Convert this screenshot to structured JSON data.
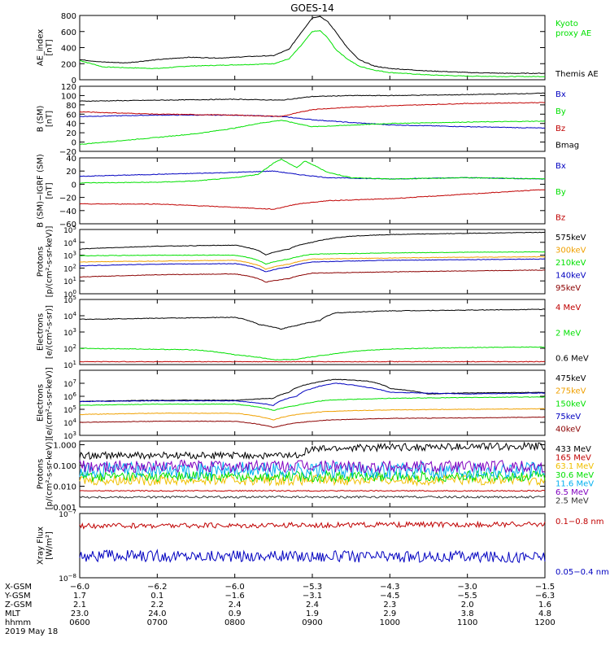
{
  "title": "GOES-14",
  "time_axis": {
    "range_hours": [
      6,
      12
    ],
    "tick_hours": [
      6,
      7,
      8,
      9,
      10,
      11,
      12
    ]
  },
  "chart_data": [
    {
      "type": "line",
      "id": "ae",
      "ylabel": "AE_index\n[nT]",
      "ylim": [
        0,
        800
      ],
      "yscale": "linear",
      "yticks": [
        0,
        200,
        400,
        600,
        800
      ],
      "series": [
        {
          "name": "Kyoto\nproxy AE",
          "color": "#00e000",
          "x": [
            6.0,
            6.3,
            6.6,
            7.0,
            7.4,
            7.8,
            8.2,
            8.5,
            8.7,
            8.85,
            9.0,
            9.1,
            9.2,
            9.3,
            9.45,
            9.6,
            9.8,
            10.0,
            10.5,
            11.0,
            11.5,
            12.0
          ],
          "y": [
            240,
            160,
            150,
            140,
            170,
            180,
            190,
            200,
            260,
            420,
            600,
            610,
            520,
            380,
            260,
            170,
            120,
            90,
            60,
            45,
            40,
            40
          ]
        },
        {
          "name": "Themis AE",
          "color": "#000000",
          "x": [
            6.0,
            6.3,
            6.6,
            7.0,
            7.4,
            7.8,
            8.2,
            8.5,
            8.7,
            8.85,
            9.0,
            9.1,
            9.2,
            9.3,
            9.45,
            9.6,
            9.8,
            10.0,
            10.5,
            11.0,
            11.5,
            12.0
          ],
          "y": [
            250,
            220,
            210,
            250,
            280,
            270,
            290,
            300,
            380,
            580,
            770,
            790,
            720,
            600,
            400,
            250,
            170,
            140,
            110,
            90,
            80,
            80
          ]
        }
      ]
    },
    {
      "type": "line",
      "id": "bsm",
      "ylabel": "B (SM)\n[nT]",
      "ylim": [
        -20,
        120
      ],
      "yscale": "linear",
      "yticks": [
        -20,
        0,
        20,
        40,
        60,
        80,
        100,
        120
      ],
      "series": [
        {
          "name": "Bx",
          "color": "#0000c0",
          "x": [
            6.0,
            7.0,
            8.0,
            8.6,
            9.0,
            9.5,
            10.0,
            11.0,
            12.0
          ],
          "y": [
            55,
            58,
            58,
            55,
            48,
            42,
            37,
            33,
            30
          ]
        },
        {
          "name": "By",
          "color": "#00e000",
          "x": [
            6.0,
            7.0,
            7.5,
            8.0,
            8.3,
            8.6,
            8.8,
            9.0,
            9.3,
            10.0,
            11.0,
            12.0
          ],
          "y": [
            -5,
            10,
            18,
            30,
            40,
            47,
            40,
            33,
            35,
            40,
            43,
            45
          ]
        },
        {
          "name": "Bz",
          "color": "#c00000",
          "x": [
            6.0,
            7.0,
            8.0,
            8.6,
            9.0,
            9.5,
            10.0,
            11.0,
            12.0
          ],
          "y": [
            65,
            60,
            58,
            55,
            70,
            75,
            78,
            83,
            85
          ]
        },
        {
          "name": "Bmag",
          "color": "#000000",
          "x": [
            6.0,
            7.0,
            8.0,
            8.6,
            9.0,
            9.5,
            10.0,
            11.0,
            12.0
          ],
          "y": [
            88,
            90,
            92,
            90,
            98,
            100,
            100,
            102,
            105
          ]
        }
      ]
    },
    {
      "type": "line",
      "id": "bigrf",
      "ylabel": "B (SM)−IGRF (SM)\n[nT]",
      "ylim": [
        -60,
        40
      ],
      "yscale": "linear",
      "yticks": [
        -60,
        -40,
        -20,
        0,
        20,
        40
      ],
      "series": [
        {
          "name": "Bx",
          "color": "#0000c0",
          "x": [
            6.0,
            7.0,
            8.0,
            8.5,
            8.8,
            9.2,
            10.0,
            11.0,
            12.0
          ],
          "y": [
            12,
            15,
            18,
            20,
            15,
            10,
            8,
            10,
            8
          ]
        },
        {
          "name": "By",
          "color": "#00e000",
          "x": [
            6.0,
            7.0,
            7.5,
            8.0,
            8.3,
            8.5,
            8.6,
            8.8,
            8.9,
            9.0,
            9.2,
            9.5,
            10.0,
            11.0,
            12.0
          ],
          "y": [
            2,
            3,
            5,
            10,
            15,
            32,
            38,
            25,
            35,
            30,
            18,
            10,
            8,
            10,
            8
          ]
        },
        {
          "name": "Bz",
          "color": "#c00000",
          "x": [
            6.0,
            7.0,
            8.0,
            8.5,
            8.8,
            9.2,
            10.0,
            11.0,
            12.0
          ],
          "y": [
            -30,
            -30,
            -35,
            -38,
            -30,
            -25,
            -22,
            -15,
            -8
          ]
        }
      ]
    },
    {
      "type": "line",
      "id": "protons",
      "ylabel": "Protons\n[p/(cm²-s-sr-keV)]",
      "ylim": [
        1,
        100000
      ],
      "yscale": "log",
      "ytick_exponents": [
        0,
        1,
        2,
        3,
        4,
        5
      ],
      "series": [
        {
          "name": "575keV",
          "color": "#000000",
          "x": [
            6.0,
            7.0,
            8.0,
            8.4,
            8.7,
            9.0,
            9.5,
            10.0,
            11.0,
            12.0
          ],
          "y": [
            3000,
            5000,
            6000,
            1000,
            3000,
            10000,
            30000,
            40000,
            50000,
            60000
          ]
        },
        {
          "name": "300keV",
          "color": "#f0a000",
          "x": [
            6.0,
            7.0,
            8.0,
            8.4,
            8.7,
            9.0,
            10.0,
            11.0,
            12.0
          ],
          "y": [
            300,
            350,
            400,
            80,
            200,
            500,
            600,
            700,
            750
          ]
        },
        {
          "name": "210keV",
          "color": "#00e000",
          "x": [
            6.0,
            7.0,
            8.0,
            8.4,
            8.7,
            9.0,
            10.0,
            11.0,
            12.0
          ],
          "y": [
            900,
            1000,
            1000,
            200,
            500,
            1200,
            1500,
            1700,
            1800
          ]
        },
        {
          "name": "140keV",
          "color": "#0000c0",
          "x": [
            6.0,
            7.0,
            8.0,
            8.4,
            8.7,
            9.0,
            10.0,
            11.0,
            12.0
          ],
          "y": [
            150,
            200,
            220,
            50,
            120,
            300,
            400,
            450,
            500
          ]
        },
        {
          "name": "95keV",
          "color": "#8b0000",
          "x": [
            6.0,
            7.0,
            8.0,
            8.4,
            8.7,
            9.0,
            10.0,
            11.0,
            12.0
          ],
          "y": [
            20,
            30,
            35,
            8,
            15,
            40,
            50,
            60,
            70
          ]
        }
      ]
    },
    {
      "type": "line",
      "id": "electrons-mev",
      "ylabel": "Electrons\n[e/(cm²-s-sr)]",
      "ylim": [
        10,
        100000
      ],
      "yscale": "log",
      "ytick_exponents": [
        1,
        2,
        3,
        4,
        5
      ],
      "series": [
        {
          "name": "4 MeV",
          "color": "#c00000",
          "x": [
            6.0,
            8.0,
            9.0,
            10.0,
            12.0
          ],
          "y": [
            15,
            15,
            15,
            15,
            15
          ]
        },
        {
          "name": "2 MeV",
          "color": "#00e000",
          "x": [
            6.0,
            7.5,
            8.0,
            8.5,
            8.8,
            9.2,
            9.6,
            10.0,
            11.0,
            12.0
          ],
          "y": [
            100,
            80,
            40,
            20,
            20,
            40,
            70,
            90,
            110,
            120
          ]
        },
        {
          "name": "0.6 MeV",
          "color": "#000000",
          "x": [
            6.0,
            7.0,
            8.0,
            8.3,
            8.6,
            8.8,
            9.1,
            9.3,
            10.0,
            11.0,
            12.0
          ],
          "y": [
            6000,
            7000,
            8000,
            3000,
            1500,
            2500,
            5000,
            15000,
            20000,
            22000,
            25000
          ]
        }
      ]
    },
    {
      "type": "line",
      "id": "electrons-kev",
      "ylabel": "Electrons\n[e/(cm²-s-sr-keV)]",
      "ylim": [
        1000,
        100000000
      ],
      "yscale": "log",
      "ytick_exponents": [
        3,
        4,
        5,
        6,
        7
      ],
      "series": [
        {
          "name": "475keV",
          "color": "#000000",
          "x": [
            6.0,
            7.0,
            8.0,
            8.5,
            8.7,
            9.0,
            9.3,
            9.7,
            10.0,
            10.5,
            11.0,
            12.0
          ],
          "y": [
            400000,
            500000,
            500000,
            700000,
            2000000,
            10000000,
            20000000,
            15000000,
            4000000,
            1500000,
            1800000,
            2000000
          ]
        },
        {
          "name": "275keV",
          "color": "#f0a000",
          "x": [
            6.0,
            7.0,
            8.0,
            8.5,
            8.8,
            9.2,
            10.0,
            11.0,
            12.0
          ],
          "y": [
            40000,
            50000,
            50000,
            15000,
            40000,
            70000,
            90000,
            100000,
            110000
          ]
        },
        {
          "name": "150keV",
          "color": "#00e000",
          "x": [
            6.0,
            7.0,
            8.0,
            8.5,
            8.8,
            9.2,
            10.0,
            11.0,
            12.0
          ],
          "y": [
            200000,
            250000,
            250000,
            80000,
            200000,
            500000,
            700000,
            800000,
            900000
          ]
        },
        {
          "name": "75keV",
          "color": "#0000c0",
          "x": [
            6.0,
            7.0,
            8.0,
            8.5,
            8.8,
            9.0,
            9.3,
            9.7,
            10.0,
            11.0,
            12.0
          ],
          "y": [
            400000,
            450000,
            450000,
            200000,
            1000000,
            4000000,
            10000000,
            5000000,
            2000000,
            1500000,
            1800000
          ]
        },
        {
          "name": "40keV",
          "color": "#8b0000",
          "x": [
            6.0,
            7.0,
            8.0,
            8.5,
            8.8,
            9.2,
            10.0,
            11.0,
            12.0
          ],
          "y": [
            10000,
            12000,
            12000,
            4000,
            9000,
            15000,
            20000,
            22000,
            25000
          ]
        }
      ]
    },
    {
      "type": "line",
      "id": "protons-mev",
      "ylabel": "Protons\n[p/(cm²-s-sr-keV)]",
      "ylim": [
        0.001,
        1.5
      ],
      "yscale": "log",
      "yticks": [
        0.001,
        0.01,
        0.1,
        1.0
      ],
      "ytick_labels": [
        "0.001",
        "0.010",
        "0.100",
        "1.000"
      ],
      "series": [
        {
          "name": "433 MeV",
          "color": "#000000",
          "x": [
            6.0,
            7.0,
            8.0,
            8.8,
            9.0,
            9.5,
            10.0,
            11.0,
            12.0
          ],
          "y": [
            0.3,
            0.3,
            0.3,
            0.3,
            0.6,
            0.7,
            0.75,
            0.8,
            0.85
          ]
        },
        {
          "name": "165 MeV",
          "color": "#c00000",
          "x": [
            6.0,
            12.0
          ],
          "y": [
            0.006,
            0.006
          ]
        },
        {
          "name": "63.1 MeV",
          "color": "#f0c000",
          "x": [
            6.0,
            12.0
          ],
          "y": [
            0.02,
            0.02
          ]
        },
        {
          "name": "30.6 MeV",
          "color": "#00e000",
          "x": [
            6.0,
            12.0
          ],
          "y": [
            0.03,
            0.03
          ]
        },
        {
          "name": "11.6 MeV",
          "color": "#00b0f0",
          "x": [
            6.0,
            12.0
          ],
          "y": [
            0.06,
            0.06
          ]
        },
        {
          "name": "6.5 MeV",
          "color": "#8000c0",
          "x": [
            6.0,
            12.0
          ],
          "y": [
            0.09,
            0.09
          ]
        },
        {
          "name": "2.5 MeV",
          "color": "#303030",
          "x": [
            6.0,
            12.0
          ],
          "y": [
            0.003,
            0.003
          ]
        }
      ]
    },
    {
      "type": "line",
      "id": "xray",
      "ylabel": "Xray Flux\n[W/m²]",
      "ylim": [
        1e-08,
        1e-07
      ],
      "yscale": "log",
      "ytick_exponents": [
        -8,
        -7
      ],
      "series": [
        {
          "name": "0.1−0.8 nm",
          "color": "#c00000",
          "x": [
            6.0,
            12.0
          ],
          "y": [
            6.4e-08,
            6.8e-08
          ]
        },
        {
          "name": "0.05−0.4 nm",
          "color": "#0000c0",
          "x": [
            6.0,
            12.0
          ],
          "y": [
            2.2e-08,
            2.1e-08
          ]
        }
      ]
    }
  ],
  "ephemeris": {
    "rows": [
      {
        "label": "X-GSM",
        "values": [
          "−6.0",
          "−6.2",
          "−6.0",
          "−5.3",
          "−4.3",
          "−3.0",
          "−1.5"
        ]
      },
      {
        "label": "Y-GSM",
        "values": [
          "1.7",
          "0.1",
          "−1.6",
          "−3.1",
          "−4.5",
          "−5.5",
          "−6.3"
        ]
      },
      {
        "label": "Z-GSM",
        "values": [
          "2.1",
          "2.2",
          "2.4",
          "2.4",
          "2.3",
          "2.0",
          "1.6"
        ]
      },
      {
        "label": "MLT",
        "values": [
          "23.0",
          "24.0",
          "0.9",
          "1.9",
          "2.9",
          "3.8",
          "4.8"
        ]
      },
      {
        "label": "hhmm",
        "values": [
          "0600",
          "0700",
          "0800",
          "0900",
          "1000",
          "1100",
          "1200"
        ]
      }
    ],
    "date": "2019 May 18"
  }
}
